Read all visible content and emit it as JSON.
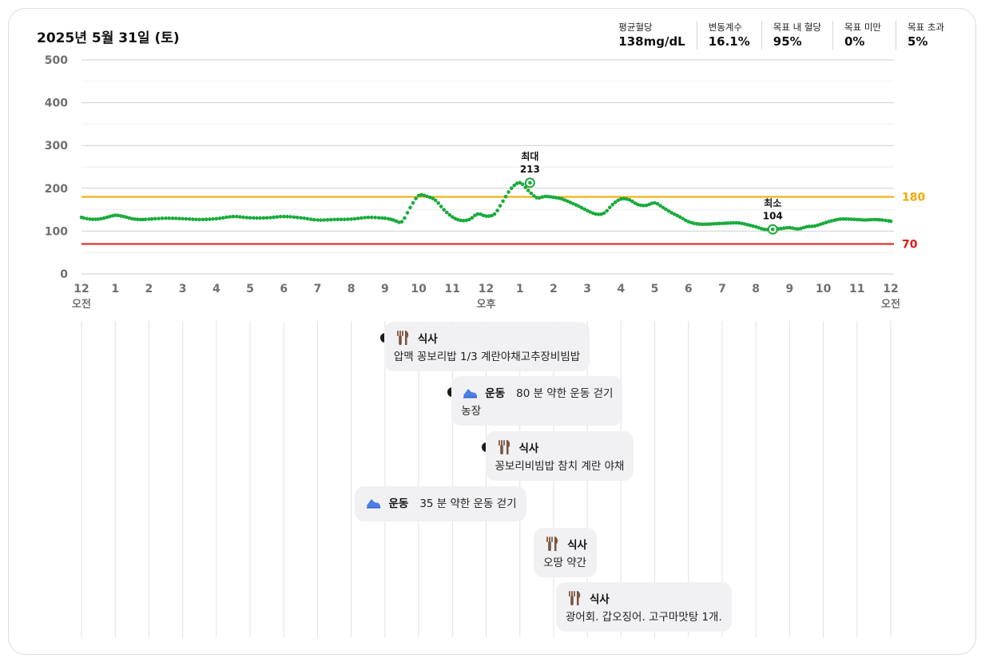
{
  "header": {
    "date": "2025년 5월 31일 (토)",
    "stats": [
      {
        "label": "평균혈당",
        "value": "138mg/dL"
      },
      {
        "label": "변동계수",
        "value": "16.1%"
      },
      {
        "label": "목표 내 혈당",
        "value": "95%"
      },
      {
        "label": "목표 미만",
        "value": "0%"
      },
      {
        "label": "목표 초과",
        "value": "5%"
      }
    ]
  },
  "colors": {
    "glucose": "#1aab3c",
    "high_threshold": "#f5a800",
    "low_threshold": "#e41919",
    "grid": "#d6d6d6",
    "axis_text": "#6f6f6f"
  },
  "chart_data": {
    "type": "line",
    "title": "",
    "xlabel": "",
    "ylabel": "",
    "ylim": [
      0,
      500
    ],
    "xlim": [
      0,
      24
    ],
    "y_ticks": [
      "0",
      "100",
      "200",
      "300",
      "400",
      "500"
    ],
    "x_ticks": [
      "12",
      "1",
      "2",
      "3",
      "4",
      "5",
      "6",
      "7",
      "8",
      "9",
      "10",
      "11",
      "12",
      "1",
      "2",
      "3",
      "4",
      "5",
      "6",
      "7",
      "8",
      "9",
      "10",
      "11",
      "12"
    ],
    "x_sublabels": [
      {
        "hour": 0,
        "text": "오전"
      },
      {
        "hour": 12,
        "text": "오후"
      },
      {
        "hour": 24,
        "text": "오전"
      }
    ],
    "thresholds": [
      {
        "value": 180,
        "label": "180"
      },
      {
        "value": 70,
        "label": "70"
      }
    ],
    "series": [
      {
        "x": [
          0,
          0.25,
          0.5,
          0.75,
          1,
          1.25,
          1.5,
          1.75,
          2,
          2.5,
          3,
          3.5,
          4,
          4.5,
          5,
          5.5,
          6,
          6.5,
          7,
          7.5,
          8,
          8.5,
          9,
          9.25,
          9.5,
          9.75,
          10,
          10.25,
          10.5,
          10.75,
          11,
          11.25,
          11.5,
          11.75,
          12,
          12.25,
          12.5,
          12.75,
          13,
          13.25,
          13.5,
          13.75,
          14,
          14.25,
          14.5,
          14.75,
          15,
          15.25,
          15.5,
          15.75,
          16,
          16.25,
          16.5,
          16.75,
          17,
          17.25,
          17.5,
          17.75,
          18,
          18.25,
          18.5,
          18.75,
          19,
          19.25,
          19.5,
          19.75,
          20,
          20.25,
          20.5,
          20.75,
          21,
          21.25,
          21.5,
          21.75,
          22,
          22.25,
          22.5,
          22.75,
          23,
          23.25,
          23.5,
          23.75,
          24
        ],
        "values": [
          132,
          128,
          128,
          132,
          137,
          134,
          129,
          127,
          128,
          130,
          129,
          127,
          129,
          134,
          131,
          131,
          134,
          131,
          126,
          127,
          128,
          132,
          130,
          126,
          122,
          155,
          183,
          181,
          172,
          150,
          133,
          125,
          127,
          140,
          135,
          140,
          170,
          200,
          213,
          195,
          178,
          181,
          179,
          175,
          167,
          158,
          148,
          140,
          142,
          162,
          175,
          173,
          162,
          160,
          166,
          155,
          143,
          133,
          122,
          117,
          116,
          117,
          118,
          119,
          119,
          115,
          110,
          104,
          104,
          106,
          108,
          105,
          110,
          112,
          118,
          124,
          128,
          128,
          127,
          126,
          127,
          126,
          123
        ]
      }
    ],
    "annotations": [
      {
        "label": "최대",
        "value": "213",
        "x": 13.3,
        "y": 213
      },
      {
        "label": "최소",
        "value": "104",
        "x": 20.5,
        "y": 104
      }
    ]
  },
  "events": [
    {
      "type": "식사",
      "kind": "meal",
      "hour": 9.0,
      "summary": "",
      "description": "압맥 꽁보리밥 1/3 계란야채고추장비빔밥"
    },
    {
      "type": "운동",
      "kind": "exercise",
      "hour": 11.0,
      "summary": "80 분 약한 운동 걷기",
      "description": "농장"
    },
    {
      "type": "식사",
      "kind": "meal",
      "hour": 12.0,
      "summary": "",
      "description": "꽁보리비빔밥 참치 계란 야채"
    },
    {
      "type": "운동",
      "kind": "exercise",
      "hour": 12.9,
      "summary": "35 분 약한 운동 걷기",
      "description": ""
    },
    {
      "type": "식사",
      "kind": "meal",
      "hour": 15.0,
      "summary": "",
      "description": "오땅 약간"
    },
    {
      "type": "식사",
      "kind": "meal",
      "hour": 19.0,
      "summary": "",
      "description": "광어회. 갑오징어. 고구마맛탕 1개."
    }
  ]
}
